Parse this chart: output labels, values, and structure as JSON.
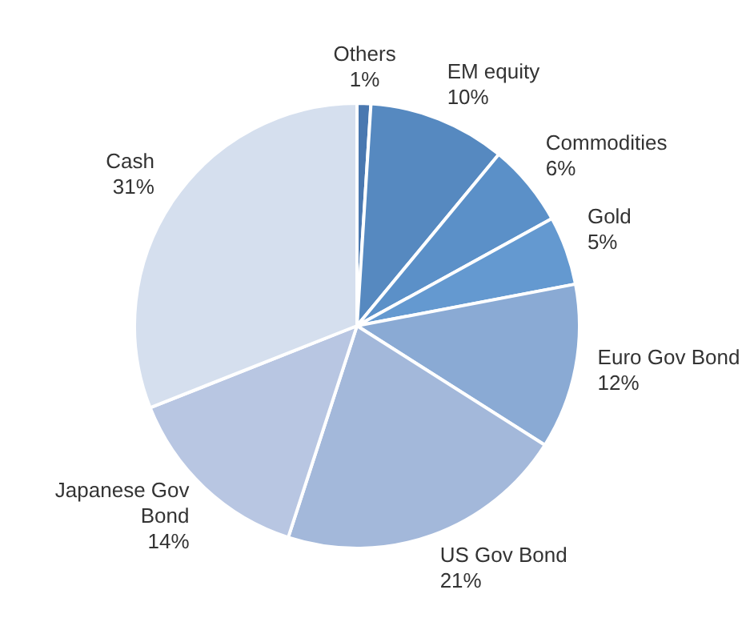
{
  "chart_data": {
    "type": "pie",
    "categories": [
      "Others",
      "EM equity",
      "Commodities",
      "Gold",
      "Euro Gov Bond",
      "US Gov Bond",
      "Japanese Gov Bond",
      "Cash"
    ],
    "values": [
      1,
      10,
      6,
      5,
      12,
      21,
      14,
      31
    ],
    "value_labels": [
      "1%",
      "10%",
      "6%",
      "5%",
      "12%",
      "21%",
      "14%",
      "31%"
    ],
    "colors": [
      "#4a78b0",
      "#5689c0",
      "#5b90c8",
      "#6499d0",
      "#8aaad4",
      "#a3b8da",
      "#b8c6e2",
      "#d5dfee"
    ],
    "legend": false
  }
}
